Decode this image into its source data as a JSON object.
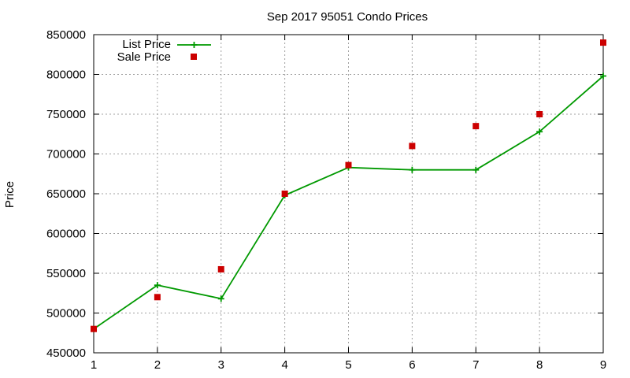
{
  "chart_data": {
    "type": "line",
    "title": "Sep 2017 95051 Condo Prices",
    "xlabel": "",
    "ylabel": "Price",
    "x": [
      1,
      2,
      3,
      4,
      5,
      6,
      7,
      8,
      9
    ],
    "xlim": [
      1,
      9
    ],
    "ylim": [
      450000,
      850000
    ],
    "xticks": [
      "1",
      "2",
      "3",
      "4",
      "5",
      "6",
      "7",
      "8",
      "9"
    ],
    "yticks": [
      "450000",
      "500000",
      "550000",
      "600000",
      "650000",
      "700000",
      "750000",
      "800000",
      "850000"
    ],
    "ytick_values": [
      450000,
      500000,
      550000,
      600000,
      650000,
      700000,
      750000,
      800000,
      850000
    ],
    "grid": true,
    "legend_position": "top-left",
    "series": [
      {
        "name": "List Price",
        "style": "line-plus",
        "color": "#009900",
        "values": [
          480000,
          535000,
          518000,
          648000,
          683000,
          680000,
          680000,
          728000,
          798000
        ]
      },
      {
        "name": "Sale Price",
        "style": "square-points",
        "color": "#cc0000",
        "values": [
          480000,
          520000,
          555000,
          650000,
          686000,
          710000,
          735000,
          750000,
          840000
        ]
      }
    ]
  }
}
